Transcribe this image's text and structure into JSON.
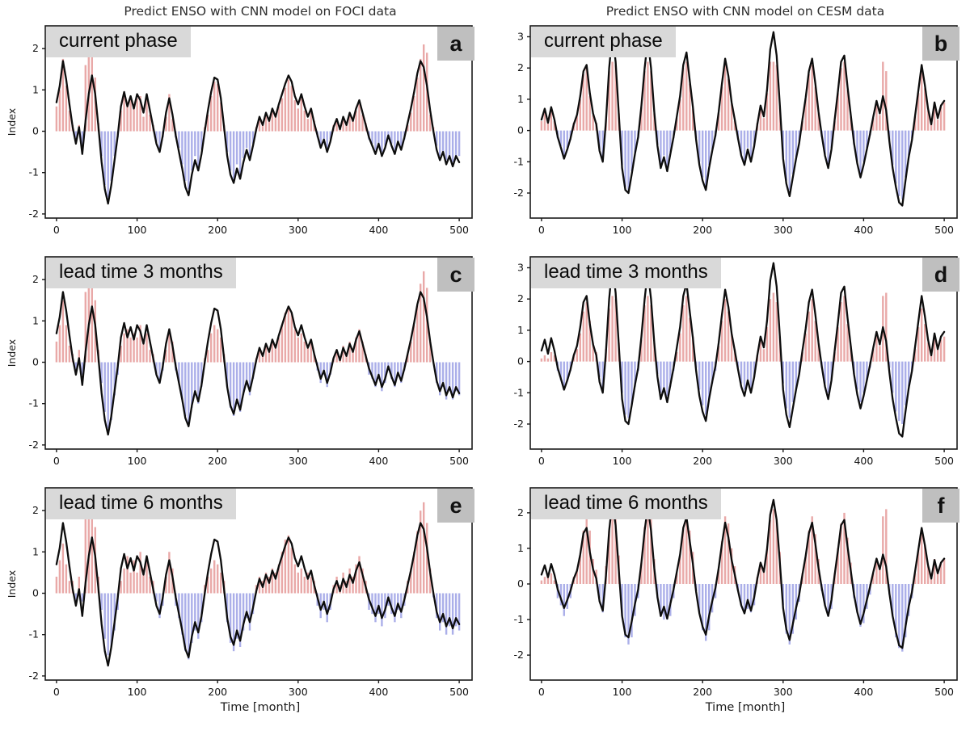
{
  "figure": {
    "xlabel": "Time [month]",
    "ylabel": "Index",
    "colors": {
      "positive_bar": "#e9a9a8",
      "negative_bar": "#abafe9",
      "line": "#0d0d0d",
      "label_box": "#d9d9d9",
      "letter_box": "#bfbfbf",
      "axis": "#1a1a1a"
    }
  },
  "series": {
    "x_step": 4,
    "foci_line": [
      0.7,
      1.1,
      1.7,
      1.25,
      0.65,
      0.1,
      -0.3,
      0.1,
      -0.55,
      0.25,
      0.9,
      1.35,
      0.9,
      0.1,
      -0.75,
      -1.4,
      -1.75,
      -1.3,
      -0.7,
      -0.1,
      0.6,
      0.95,
      0.6,
      0.85,
      0.55,
      0.9,
      0.75,
      0.45,
      0.9,
      0.5,
      0.1,
      -0.3,
      -0.5,
      -0.1,
      0.45,
      0.8,
      0.4,
      -0.1,
      -0.5,
      -0.9,
      -1.35,
      -1.55,
      -1.05,
      -0.7,
      -0.95,
      -0.55,
      0.0,
      0.5,
      0.95,
      1.3,
      1.25,
      0.8,
      0.1,
      -0.6,
      -1.05,
      -1.25,
      -0.9,
      -1.15,
      -0.75,
      -0.45,
      -0.7,
      -0.35,
      0.05,
      0.35,
      0.15,
      0.45,
      0.25,
      0.55,
      0.35,
      0.65,
      0.9,
      1.15,
      1.35,
      1.2,
      0.85,
      0.65,
      0.9,
      0.6,
      0.35,
      0.55,
      0.2,
      -0.1,
      -0.4,
      -0.2,
      -0.5,
      -0.25,
      0.1,
      0.3,
      0.05,
      0.35,
      0.15,
      0.45,
      0.25,
      0.55,
      0.75,
      0.45,
      0.15,
      -0.15,
      -0.35,
      -0.55,
      -0.3,
      -0.6,
      -0.4,
      -0.1,
      -0.35,
      -0.55,
      -0.25,
      -0.45,
      -0.15,
      0.2,
      0.55,
      0.95,
      1.4,
      1.7,
      1.55,
      1.1,
      0.5,
      0.0,
      -0.45,
      -0.7,
      -0.5,
      -0.8,
      -0.6,
      -0.85,
      -0.6,
      -0.75
    ],
    "cesm_line": [
      0.35,
      0.7,
      0.25,
      0.75,
      0.35,
      -0.2,
      -0.55,
      -0.9,
      -0.6,
      -0.25,
      0.2,
      0.5,
      1.1,
      1.9,
      2.1,
      1.2,
      0.55,
      0.2,
      -0.65,
      -1.0,
      0.3,
      2.0,
      3.1,
      2.2,
      0.5,
      -1.2,
      -1.9,
      -2.0,
      -1.4,
      -0.75,
      -0.2,
      0.8,
      2.0,
      2.9,
      2.0,
      0.6,
      -0.5,
      -1.2,
      -0.85,
      -1.3,
      -0.75,
      -0.2,
      0.45,
      1.1,
      2.1,
      2.5,
      1.6,
      0.75,
      -0.3,
      -1.1,
      -1.6,
      -1.9,
      -1.2,
      -0.65,
      -0.15,
      0.6,
      1.5,
      2.3,
      1.75,
      0.9,
      0.35,
      -0.25,
      -0.8,
      -1.1,
      -0.6,
      -1.0,
      -0.5,
      0.2,
      0.8,
      0.45,
      1.3,
      2.6,
      3.15,
      2.4,
      0.8,
      -0.9,
      -1.7,
      -2.1,
      -1.5,
      -0.9,
      -0.4,
      0.35,
      1.05,
      1.9,
      2.3,
      1.5,
      0.6,
      -0.15,
      -0.8,
      -1.2,
      -0.6,
      0.35,
      1.25,
      2.2,
      2.4,
      1.4,
      0.5,
      -0.4,
      -1.05,
      -1.5,
      -1.1,
      -0.6,
      -0.1,
      0.45,
      0.95,
      0.55,
      1.1,
      0.65,
      -0.35,
      -1.2,
      -1.8,
      -2.3,
      -2.4,
      -1.6,
      -0.85,
      -0.3,
      0.5,
      1.3,
      2.1,
      1.45,
      0.7,
      0.2,
      0.9,
      0.4,
      0.8,
      0.95
    ]
  },
  "chart_data": [
    {
      "type": "bar",
      "letter": "a",
      "title": "Predict ENSO with CNN model on FOCI data",
      "label": "current phase",
      "dataset": "FOCI",
      "line": "foci_line",
      "line_scale": 1,
      "ylabel": "Index",
      "xlabel": "",
      "xlim": [
        -14,
        516
      ],
      "ylim": [
        -2.1,
        2.55
      ],
      "xticks": [
        0,
        100,
        200,
        300,
        400,
        500
      ],
      "yticks": [
        2,
        1,
        0,
        -1,
        -2
      ],
      "bars": [
        0.6,
        1.0,
        1.75,
        1.1,
        0.5,
        0.15,
        -0.25,
        0.15,
        -0.45,
        1.6,
        2.0,
        2.05,
        1.3,
        0.2,
        -0.6,
        -1.3,
        -1.6,
        -1.2,
        -0.6,
        -0.15,
        0.5,
        0.85,
        0.7,
        0.75,
        0.6,
        0.8,
        0.85,
        0.35,
        0.8,
        0.4,
        0.15,
        -0.25,
        -0.4,
        -0.15,
        0.35,
        0.9,
        0.3,
        -0.15,
        -0.4,
        -0.8,
        -1.2,
        -1.4,
        -0.95,
        -0.6,
        -0.85,
        -0.45,
        0.1,
        0.4,
        0.85,
        1.2,
        1.15,
        0.7,
        0.15,
        -0.5,
        -0.95,
        -1.15,
        -0.8,
        -1.05,
        -0.65,
        -0.4,
        -0.6,
        -0.3,
        0.1,
        0.3,
        0.2,
        0.4,
        0.3,
        0.5,
        0.4,
        0.6,
        0.8,
        1.05,
        1.25,
        1.1,
        0.75,
        0.55,
        0.8,
        0.5,
        0.3,
        0.45,
        0.25,
        -0.15,
        -0.35,
        -0.25,
        -0.4,
        -0.2,
        0.15,
        0.25,
        0.1,
        0.3,
        0.2,
        0.4,
        0.3,
        0.5,
        0.65,
        0.4,
        0.2,
        -0.2,
        -0.3,
        -0.45,
        -0.35,
        -0.5,
        -0.35,
        -0.15,
        -0.3,
        -0.45,
        -0.3,
        -0.4,
        -0.2,
        0.15,
        0.45,
        0.85,
        1.3,
        1.75,
        2.1,
        1.9,
        0.4,
        0.1,
        -0.35,
        -0.6,
        -0.55,
        -0.7,
        -0.65,
        -0.75,
        -0.65,
        -0.6
      ]
    },
    {
      "type": "bar",
      "letter": "b",
      "title": "Predict ENSO with CNN model on CESM data",
      "label": "current phase",
      "dataset": "CESM",
      "line": "cesm_line",
      "line_scale": 1,
      "ylabel": "",
      "xlabel": "",
      "xlim": [
        -14,
        516
      ],
      "ylim": [
        -2.8,
        3.35
      ],
      "xticks": [
        0,
        100,
        200,
        300,
        400,
        500
      ],
      "yticks": [
        3,
        2,
        1,
        0,
        -1,
        -2
      ],
      "bars": [
        0.3,
        0.6,
        0.3,
        0.7,
        0.3,
        -0.25,
        -0.5,
        -0.85,
        -0.55,
        -0.3,
        0.25,
        0.45,
        1.0,
        1.8,
        2.0,
        1.1,
        0.5,
        0.25,
        -0.6,
        -0.95,
        0.35,
        1.9,
        2.2,
        2.1,
        0.55,
        -1.1,
        -1.8,
        -1.9,
        -1.3,
        -0.7,
        -0.25,
        0.75,
        1.9,
        2.2,
        1.9,
        0.55,
        -0.45,
        -1.1,
        -0.8,
        -1.2,
        -0.7,
        -0.25,
        0.4,
        1.0,
        2.0,
        2.2,
        1.5,
        0.7,
        -0.25,
        -1.0,
        -1.5,
        -1.8,
        -1.1,
        -0.6,
        -0.2,
        0.55,
        1.4,
        2.2,
        1.65,
        0.85,
        0.3,
        -0.3,
        -0.75,
        -1.0,
        -0.55,
        -0.95,
        -0.45,
        0.25,
        0.75,
        0.4,
        1.2,
        2.2,
        2.2,
        2.1,
        0.75,
        -0.85,
        -1.6,
        -1.9,
        -1.4,
        -0.85,
        -0.35,
        0.3,
        1.0,
        1.8,
        2.1,
        1.4,
        0.55,
        -0.2,
        -0.75,
        -1.1,
        -0.55,
        0.3,
        1.2,
        2.0,
        2.2,
        1.3,
        0.45,
        -0.45,
        -1.0,
        -1.4,
        -1.0,
        -0.55,
        -0.15,
        0.4,
        0.9,
        0.5,
        2.2,
        1.9,
        -0.3,
        -1.1,
        -1.7,
        -2.1,
        -2.2,
        -1.5,
        -0.8,
        -0.25,
        0.45,
        1.2,
        1.9,
        1.35,
        0.65,
        0.25,
        0.85,
        0.35,
        0.75,
        0.9
      ]
    },
    {
      "type": "bar",
      "letter": "c",
      "title": "",
      "label": "lead time 3 months",
      "dataset": "FOCI",
      "line": "foci_line",
      "line_scale": 1,
      "ylabel": "Index",
      "xlabel": "",
      "xlim": [
        -14,
        516
      ],
      "ylim": [
        -2.1,
        2.55
      ],
      "xticks": [
        0,
        100,
        200,
        300,
        400,
        500
      ],
      "yticks": [
        2,
        1,
        0,
        -1,
        -2
      ],
      "bars": [
        0.5,
        0.9,
        1.5,
        0.9,
        0.4,
        0.2,
        -0.2,
        0.3,
        -0.3,
        1.7,
        2.1,
        2.2,
        1.5,
        0.3,
        -0.5,
        -1.2,
        -1.6,
        -1.4,
        -0.8,
        -0.3,
        0.4,
        0.7,
        0.8,
        0.6,
        0.7,
        0.6,
        0.9,
        0.5,
        0.7,
        0.3,
        0.2,
        -0.3,
        -0.5,
        -0.2,
        0.3,
        0.8,
        0.5,
        -0.2,
        -0.5,
        -0.9,
        -1.3,
        -1.5,
        -1.1,
        -0.8,
        -1.0,
        -0.6,
        0.1,
        0.3,
        0.7,
        0.9,
        0.8,
        0.6,
        0.2,
        -0.6,
        -1.1,
        -1.3,
        -1.0,
        -1.2,
        -0.8,
        -0.5,
        -0.8,
        -0.4,
        0.1,
        0.3,
        0.2,
        0.4,
        0.3,
        0.5,
        0.4,
        0.6,
        0.9,
        1.2,
        1.35,
        1.2,
        0.8,
        0.6,
        0.7,
        0.5,
        0.4,
        0.5,
        0.2,
        -0.2,
        -0.5,
        -0.3,
        -0.6,
        -0.3,
        0.1,
        0.3,
        0.1,
        0.4,
        0.2,
        0.5,
        0.3,
        0.6,
        0.8,
        0.5,
        0.2,
        -0.3,
        -0.4,
        -0.6,
        -0.4,
        -0.7,
        -0.5,
        -0.2,
        -0.4,
        -0.6,
        -0.3,
        -0.5,
        -0.2,
        0.2,
        0.5,
        0.9,
        1.4,
        1.9,
        2.2,
        1.8,
        0.5,
        0.0,
        -0.5,
        -0.8,
        -0.6,
        -0.9,
        -0.7,
        -0.9,
        -0.7,
        -0.8
      ]
    },
    {
      "type": "bar",
      "letter": "d",
      "title": "",
      "label": "lead time 3 months",
      "dataset": "CESM",
      "line": "cesm_line",
      "line_scale": 1,
      "ylabel": "",
      "xlabel": "",
      "xlim": [
        -14,
        516
      ],
      "ylim": [
        -2.8,
        3.35
      ],
      "xticks": [
        0,
        100,
        200,
        300,
        400,
        500
      ],
      "yticks": [
        3,
        2,
        1,
        0,
        -1,
        -2
      ],
      "bars": [
        0.1,
        0.2,
        0.1,
        0.3,
        0.2,
        -0.3,
        -0.6,
        -0.8,
        -0.6,
        -0.3,
        0.2,
        0.4,
        0.9,
        1.6,
        1.9,
        1.3,
        0.6,
        0.3,
        -0.5,
        -0.9,
        0.4,
        1.7,
        2.1,
        2.0,
        0.6,
        -1.0,
        -1.7,
        -1.8,
        -1.4,
        -0.8,
        -0.3,
        0.7,
        1.8,
        2.1,
        1.8,
        0.6,
        -0.4,
        -1.0,
        -0.9,
        -1.1,
        -0.8,
        -0.3,
        0.3,
        0.9,
        1.8,
        2.1,
        1.4,
        0.8,
        -0.2,
        -0.9,
        -1.4,
        -1.7,
        -1.2,
        -0.7,
        -0.3,
        0.5,
        1.3,
        2.0,
        1.6,
        0.9,
        0.4,
        -0.2,
        -0.7,
        -0.9,
        -0.6,
        -0.9,
        -0.5,
        0.2,
        0.7,
        0.4,
        1.1,
        2.0,
        2.2,
        1.9,
        0.8,
        -0.7,
        -1.5,
        -1.8,
        -1.3,
        -0.9,
        -0.4,
        0.3,
        0.9,
        1.6,
        2.0,
        1.3,
        0.6,
        -0.2,
        -0.7,
        -1.0,
        -0.6,
        0.3,
        1.1,
        1.9,
        2.1,
        1.2,
        0.5,
        -0.4,
        -0.9,
        -1.3,
        -1.0,
        -0.6,
        -0.2,
        0.4,
        0.8,
        0.5,
        2.1,
        2.2,
        -0.2,
        -1.0,
        -1.6,
        -1.9,
        -2.0,
        -1.4,
        -0.8,
        -0.3,
        0.4,
        1.1,
        1.7,
        1.2,
        0.6,
        0.3,
        0.8,
        0.4,
        0.7,
        0.8
      ]
    },
    {
      "type": "bar",
      "letter": "e",
      "title": "",
      "label": "lead time 6 months",
      "dataset": "FOCI",
      "line": "foci_line",
      "line_scale": 1,
      "ylabel": "Index",
      "xlabel": "Time [month]",
      "xlim": [
        -14,
        516
      ],
      "ylim": [
        -2.1,
        2.55
      ],
      "xticks": [
        0,
        100,
        200,
        300,
        400,
        500
      ],
      "yticks": [
        2,
        1,
        0,
        -1,
        -2
      ],
      "bars": [
        0.4,
        0.8,
        1.2,
        0.7,
        0.3,
        0.3,
        -0.2,
        0.4,
        -0.2,
        1.9,
        2.3,
        2.2,
        1.6,
        0.4,
        -0.4,
        -1.1,
        -1.5,
        -1.3,
        -0.9,
        -0.4,
        0.3,
        0.6,
        0.9,
        0.5,
        0.8,
        0.5,
        1.0,
        0.6,
        0.8,
        0.4,
        0.3,
        -0.2,
        -0.6,
        -0.3,
        0.4,
        1.0,
        0.6,
        -0.3,
        -0.6,
        -1.0,
        -1.4,
        -1.6,
        -1.2,
        -0.9,
        -1.1,
        -0.7,
        0.2,
        0.4,
        0.6,
        0.8,
        0.7,
        0.5,
        0.3,
        -0.7,
        -1.2,
        -1.4,
        -1.1,
        -1.3,
        -0.9,
        -0.6,
        -0.9,
        -0.5,
        0.2,
        0.4,
        0.3,
        0.5,
        0.4,
        0.6,
        0.5,
        0.7,
        1.0,
        1.3,
        1.4,
        1.1,
        0.7,
        0.5,
        0.6,
        0.4,
        0.5,
        0.4,
        0.3,
        -0.3,
        -0.6,
        -0.4,
        -0.7,
        -0.4,
        0.2,
        0.4,
        0.2,
        0.5,
        0.3,
        0.6,
        0.4,
        0.7,
        0.9,
        0.6,
        0.3,
        -0.4,
        -0.5,
        -0.7,
        -0.5,
        -0.8,
        -0.6,
        -0.3,
        -0.5,
        -0.7,
        -0.4,
        -0.6,
        -0.3,
        0.3,
        0.6,
        1.0,
        1.5,
        2.0,
        2.2,
        1.7,
        0.6,
        -0.1,
        -0.6,
        -0.9,
        -0.7,
        -1.0,
        -0.8,
        -1.0,
        -0.8,
        -0.9
      ]
    },
    {
      "type": "bar",
      "letter": "f",
      "title": "",
      "label": "lead time 6 months",
      "dataset": "CESM",
      "line": "cesm_line",
      "line_scale": 0.75,
      "ylabel": "",
      "xlabel": "Time [month]",
      "xlim": [
        -14,
        516
      ],
      "ylim": [
        -2.7,
        2.7
      ],
      "xticks": [
        0,
        100,
        200,
        300,
        400,
        500
      ],
      "yticks": [
        2,
        1,
        0,
        -1,
        -2
      ],
      "bars": [
        0.1,
        0.2,
        0.2,
        0.3,
        0.1,
        -0.4,
        -0.6,
        -0.9,
        -0.7,
        -0.4,
        0.2,
        0.4,
        0.8,
        1.5,
        2.0,
        1.5,
        0.7,
        0.4,
        -0.4,
        -0.8,
        0.5,
        1.5,
        2.3,
        2.2,
        0.8,
        -0.9,
        -1.5,
        -1.7,
        -1.5,
        -0.9,
        -0.4,
        0.6,
        1.6,
        2.0,
        1.9,
        0.7,
        -0.4,
        -0.9,
        -1.0,
        -1.0,
        -0.9,
        -0.4,
        0.3,
        0.8,
        1.6,
        2.0,
        1.5,
        0.9,
        -0.2,
        -0.8,
        -1.3,
        -1.6,
        -1.3,
        -0.8,
        -0.4,
        0.4,
        1.2,
        1.9,
        1.7,
        1.0,
        0.5,
        -0.2,
        -0.6,
        -0.8,
        -0.7,
        -0.8,
        -0.6,
        0.2,
        0.6,
        0.4,
        1.0,
        1.8,
        2.1,
        1.8,
        0.9,
        -0.6,
        -1.4,
        -1.7,
        -1.4,
        -1.0,
        -0.5,
        0.3,
        0.8,
        1.5,
        1.9,
        1.4,
        0.7,
        -0.2,
        -0.6,
        -0.9,
        -0.7,
        0.3,
        1.0,
        1.7,
        2.0,
        1.3,
        0.6,
        -0.4,
        -0.8,
        -1.2,
        -1.1,
        -0.7,
        -0.3,
        0.3,
        0.7,
        0.5,
        1.9,
        2.1,
        -0.3,
        -0.9,
        -1.5,
        -1.8,
        -1.9,
        -1.5,
        -0.9,
        -0.4,
        0.3,
        1.0,
        1.5,
        1.1,
        0.5,
        0.3,
        0.7,
        0.4,
        0.6,
        0.7
      ]
    }
  ]
}
